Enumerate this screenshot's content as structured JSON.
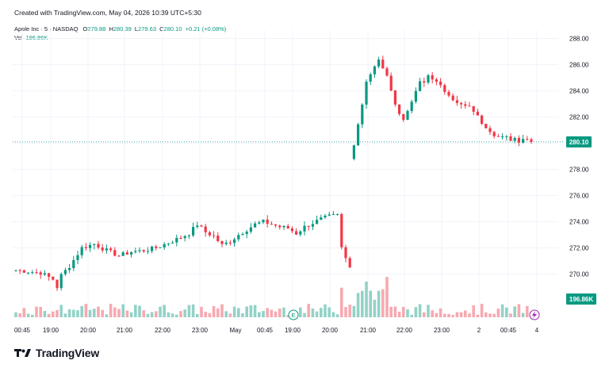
{
  "header": {
    "created_text": "Created with TradingView.com, May 04, 2026 10:39 UTC+5:30"
  },
  "legend": {
    "symbol": "Apple Inc · 5 · NASDAQ",
    "o_label": "O",
    "o_value": "279.88",
    "h_label": "H",
    "h_value": "280.39",
    "l_label": "L",
    "l_value": "279.63",
    "c_label": "C",
    "c_value": "280.10",
    "change": "+0.21 (+0.08%)",
    "vol_label": "Vol",
    "vol_value": "196.86K"
  },
  "colors": {
    "up": "#089981",
    "down": "#f23645",
    "up_vol": "#93d2c7",
    "down_vol": "#f7a9b0",
    "grid": "#f0f3fa",
    "axis_text": "#131722"
  },
  "price_badge": "280.10",
  "volume_badge": "196.86K",
  "markers": {
    "earnings": "E",
    "flash_icon": "lightning-icon"
  },
  "logo_text": "TradingView",
  "chart_data": {
    "type": "candlestick",
    "y_ticks": [
      "288.00",
      "286.00",
      "284.00",
      "282.00",
      "280.00",
      "278.00",
      "276.00",
      "274.00",
      "272.00",
      "270.00"
    ],
    "ylim": [
      268.5,
      289.0
    ],
    "x_ticks": [
      "00:45",
      "19:00",
      "20:00",
      "21:00",
      "22:00",
      "23:00",
      "May",
      "00:45",
      "19:00",
      "20:00",
      "21:00",
      "22:00",
      "23:00",
      "2",
      "00:45",
      "4"
    ],
    "series": [
      {
        "name": "day1",
        "close_path": [
          [
            0,
            270.3
          ],
          [
            3,
            270.2
          ],
          [
            6,
            270.1
          ],
          [
            9,
            269.6
          ],
          [
            10,
            269.0
          ],
          [
            11,
            269.9
          ],
          [
            13,
            270.6
          ],
          [
            16,
            272.0
          ],
          [
            19,
            272.3
          ],
          [
            22,
            271.8
          ],
          [
            25,
            271.4
          ],
          [
            28,
            271.7
          ],
          [
            31,
            271.8
          ],
          [
            34,
            272.0
          ],
          [
            37,
            272.4
          ],
          [
            40,
            272.8
          ],
          [
            42,
            273.1
          ],
          [
            44,
            273.8
          ],
          [
            46,
            273.2
          ],
          [
            48,
            272.9
          ],
          [
            50,
            272.2
          ],
          [
            52,
            272.5
          ],
          [
            54,
            273.0
          ],
          [
            56,
            273.4
          ],
          [
            58,
            273.8
          ],
          [
            60,
            274.0
          ],
          [
            62,
            273.8
          ],
          [
            64,
            273.6
          ],
          [
            66,
            273.5
          ],
          [
            68,
            273.1
          ],
          [
            70,
            273.6
          ],
          [
            72,
            273.9
          ],
          [
            74,
            274.2
          ],
          [
            76,
            274.4
          ],
          [
            78,
            274.5
          ],
          [
            79,
            272.0
          ],
          [
            80,
            271.2
          ],
          [
            81,
            270.5
          ]
        ]
      },
      {
        "name": "day2",
        "close_path": [
          [
            82,
            280.0
          ],
          [
            83,
            281.5
          ],
          [
            84,
            283.0
          ],
          [
            85,
            284.8
          ],
          [
            86,
            285.3
          ],
          [
            87,
            285.8
          ],
          [
            88,
            286.3
          ],
          [
            89,
            285.8
          ],
          [
            90,
            285.0
          ],
          [
            91,
            284.2
          ],
          [
            92,
            283.0
          ],
          [
            93,
            282.2
          ],
          [
            94,
            281.8
          ],
          [
            95,
            282.6
          ],
          [
            96,
            283.0
          ],
          [
            97,
            284.0
          ],
          [
            98,
            284.6
          ],
          [
            99,
            284.6
          ],
          [
            100,
            285.2
          ],
          [
            101,
            285.0
          ],
          [
            102,
            284.6
          ],
          [
            103,
            284.3
          ],
          [
            104,
            284.0
          ],
          [
            105,
            283.8
          ],
          [
            106,
            283.4
          ],
          [
            107,
            283.0
          ],
          [
            108,
            282.9
          ],
          [
            109,
            282.8
          ],
          [
            110,
            282.7
          ],
          [
            111,
            282.5
          ],
          [
            112,
            282.0
          ],
          [
            113,
            281.6
          ],
          [
            114,
            281.3
          ],
          [
            115,
            281.0
          ],
          [
            116,
            280.7
          ],
          [
            117,
            280.5
          ],
          [
            118,
            280.4
          ],
          [
            119,
            280.4
          ],
          [
            120,
            280.3
          ],
          [
            121,
            280.4
          ],
          [
            122,
            280.2
          ],
          [
            123,
            280.4
          ],
          [
            124,
            280.3
          ],
          [
            125,
            280.1
          ]
        ]
      }
    ],
    "volume_badge": "196.86K",
    "last_price": 280.1
  }
}
